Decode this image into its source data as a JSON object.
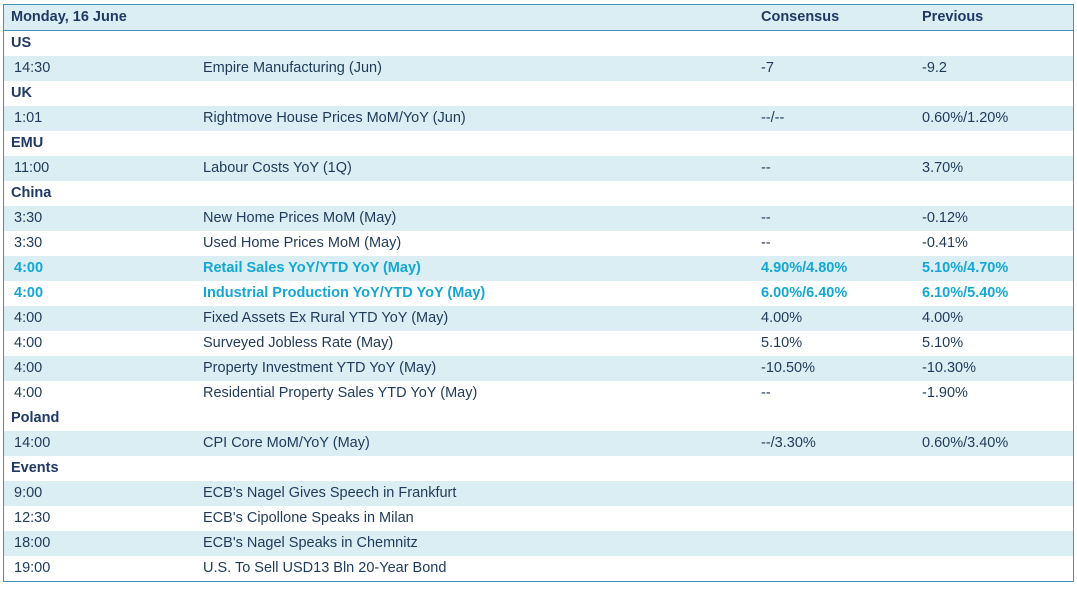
{
  "header": {
    "date": "Monday, 16 June",
    "consensus_label": "Consensus",
    "previous_label": "Previous"
  },
  "colors": {
    "accent": "#14a7d6",
    "border": "#3b95b4",
    "shade": "#daeef3",
    "text": "#1f3a5a"
  },
  "sections": [
    {
      "region": "US",
      "events": [
        {
          "time": "14:30",
          "name": "Empire Manufacturing (Jun)",
          "consensus": "-7",
          "previous": "-9.2",
          "highlight": false
        }
      ]
    },
    {
      "region": "UK",
      "events": [
        {
          "time": "1:01",
          "name": "Rightmove House Prices MoM/YoY (Jun)",
          "consensus": "--/--",
          "previous": "0.60%/1.20%",
          "highlight": false
        }
      ]
    },
    {
      "region": "EMU",
      "events": [
        {
          "time": "11:00",
          "name": "Labour Costs YoY (1Q)",
          "consensus": "--",
          "previous": "3.70%",
          "highlight": false
        }
      ]
    },
    {
      "region": "China",
      "events": [
        {
          "time": "3:30",
          "name": "New Home Prices MoM (May)",
          "consensus": "--",
          "previous": "-0.12%",
          "highlight": false
        },
        {
          "time": "3:30",
          "name": "Used Home Prices MoM (May)",
          "consensus": "--",
          "previous": "-0.41%",
          "highlight": false
        },
        {
          "time": "4:00",
          "name": "Retail Sales YoY/YTD YoY (May)",
          "consensus": "4.90%/4.80%",
          "previous": "5.10%/4.70%",
          "highlight": true
        },
        {
          "time": "4:00",
          "name": "Industrial Production YoY/YTD YoY (May)",
          "consensus": "6.00%/6.40%",
          "previous": "6.10%/5.40%",
          "highlight": true
        },
        {
          "time": "4:00",
          "name": "Fixed Assets Ex Rural YTD YoY (May)",
          "consensus": "4.00%",
          "previous": "4.00%",
          "highlight": false
        },
        {
          "time": "4:00",
          "name": "Surveyed Jobless Rate (May)",
          "consensus": "5.10%",
          "previous": "5.10%",
          "highlight": false
        },
        {
          "time": "4:00",
          "name": "Property Investment YTD YoY (May)",
          "consensus": "-10.50%",
          "previous": "-10.30%",
          "highlight": false
        },
        {
          "time": "4:00",
          "name": "Residential Property Sales YTD YoY (May)",
          "consensus": "--",
          "previous": "-1.90%",
          "highlight": false
        }
      ]
    },
    {
      "region": "Poland",
      "events": [
        {
          "time": "14:00",
          "name": "CPI Core MoM/YoY (May)",
          "consensus": "--/3.30%",
          "previous": "0.60%/3.40%",
          "highlight": false
        }
      ]
    },
    {
      "region": "Events",
      "events": [
        {
          "time": "9:00",
          "name": "ECB's Nagel Gives Speech in Frankfurt",
          "consensus": "",
          "previous": "",
          "highlight": false
        },
        {
          "time": "12:30",
          "name": "ECB's Cipollone Speaks in Milan",
          "consensus": "",
          "previous": "",
          "highlight": false
        },
        {
          "time": "18:00",
          "name": "ECB's Nagel Speaks in Chemnitz",
          "consensus": "",
          "previous": "",
          "highlight": false
        },
        {
          "time": "19:00",
          "name": "U.S. To Sell USD13 Bln 20-Year Bond",
          "consensus": "",
          "previous": "",
          "highlight": false
        }
      ]
    }
  ]
}
